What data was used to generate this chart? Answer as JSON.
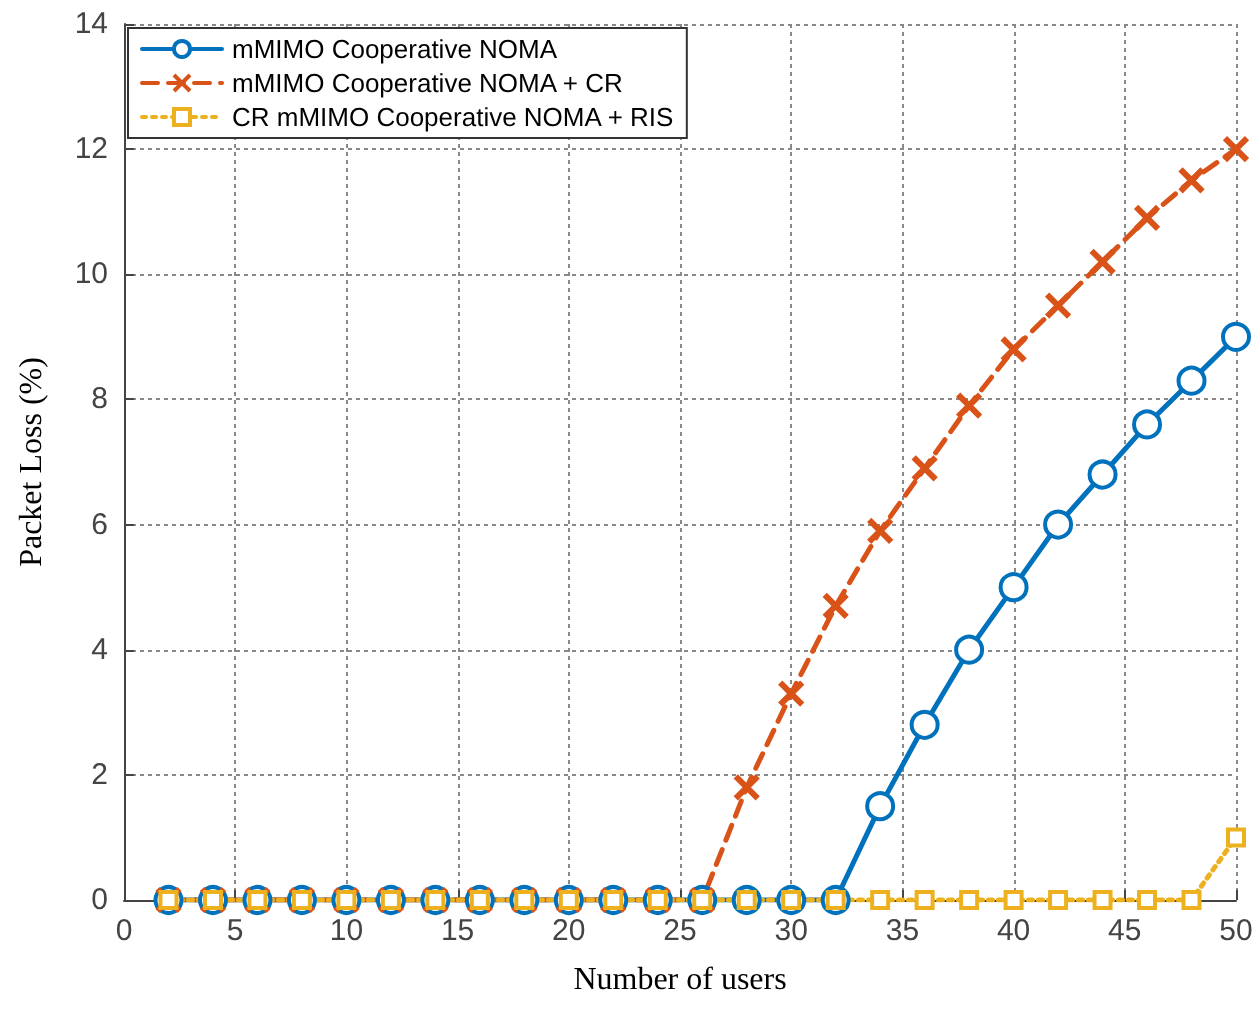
{
  "chart_data": {
    "type": "line",
    "xlabel": "Number of users",
    "ylabel": "Packet Loss (%)",
    "x": [
      2,
      4,
      6,
      8,
      10,
      12,
      14,
      16,
      18,
      20,
      22,
      24,
      26,
      28,
      30,
      32,
      34,
      36,
      38,
      40,
      42,
      44,
      46,
      48,
      50
    ],
    "series": [
      {
        "name": "mMIMO Cooperative NOMA",
        "color": "#0072bd",
        "marker": "circle",
        "line_style": "solid",
        "values": [
          0,
          0,
          0,
          0,
          0,
          0,
          0,
          0,
          0,
          0,
          0,
          0,
          0,
          0,
          0,
          0,
          1.5,
          2.8,
          4.0,
          5.0,
          6.0,
          6.8,
          7.6,
          8.3,
          9.0
        ]
      },
      {
        "name": "mMIMO Cooperative NOMA + CR",
        "color": "#d95319",
        "marker": "cross",
        "line_style": "dashed",
        "values": [
          0,
          0,
          0,
          0,
          0,
          0,
          0,
          0,
          0,
          0,
          0,
          0,
          0,
          1.8,
          3.3,
          4.7,
          5.9,
          6.9,
          7.9,
          8.8,
          9.5,
          10.2,
          10.9,
          11.5,
          12.0
        ]
      },
      {
        "name": "CR mMIMO Cooperative NOMA + RIS",
        "color": "#edb120",
        "marker": "square",
        "line_style": "dotted",
        "values": [
          0,
          0,
          0,
          0,
          0,
          0,
          0,
          0,
          0,
          0,
          0,
          0,
          0,
          0,
          0,
          0,
          0,
          0,
          0,
          0,
          0,
          0,
          0,
          0,
          1.0
        ]
      }
    ],
    "xlim": [
      0,
      50
    ],
    "xticks": [
      0,
      5,
      10,
      15,
      20,
      25,
      30,
      35,
      40,
      45,
      50
    ],
    "ylim": [
      0,
      14
    ],
    "yticks": [
      0,
      2,
      4,
      6,
      8,
      10,
      12,
      14
    ],
    "grid": true,
    "legend": "top left"
  }
}
